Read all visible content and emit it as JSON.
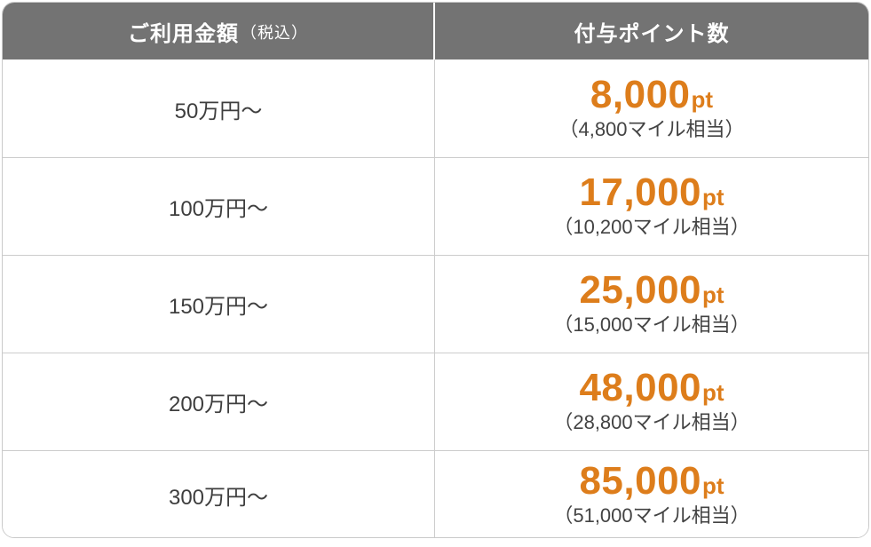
{
  "table": {
    "header": {
      "amount_label": "ご利用金額",
      "amount_note": "（税込）",
      "points_label": "付与ポイント数"
    },
    "rows": [
      {
        "amount": "50万円〜",
        "points": "8,000",
        "unit": "pt",
        "miles": "（4,800マイル相当）"
      },
      {
        "amount": "100万円〜",
        "points": "17,000",
        "unit": "pt",
        "miles": "（10,200マイル相当）"
      },
      {
        "amount": "150万円〜",
        "points": "25,000",
        "unit": "pt",
        "miles": "（15,000マイル相当）"
      },
      {
        "amount": "200万円〜",
        "points": "48,000",
        "unit": "pt",
        "miles": "（28,800マイル相当）"
      },
      {
        "amount": "300万円〜",
        "points": "85,000",
        "unit": "pt",
        "miles": "（51,000マイル相当）"
      }
    ],
    "colors": {
      "header_bg": "#737373",
      "header_text": "#ffffff",
      "accent_orange": "#dd7d1b",
      "body_text": "#3e3e3e",
      "border": "#cccccc"
    }
  }
}
